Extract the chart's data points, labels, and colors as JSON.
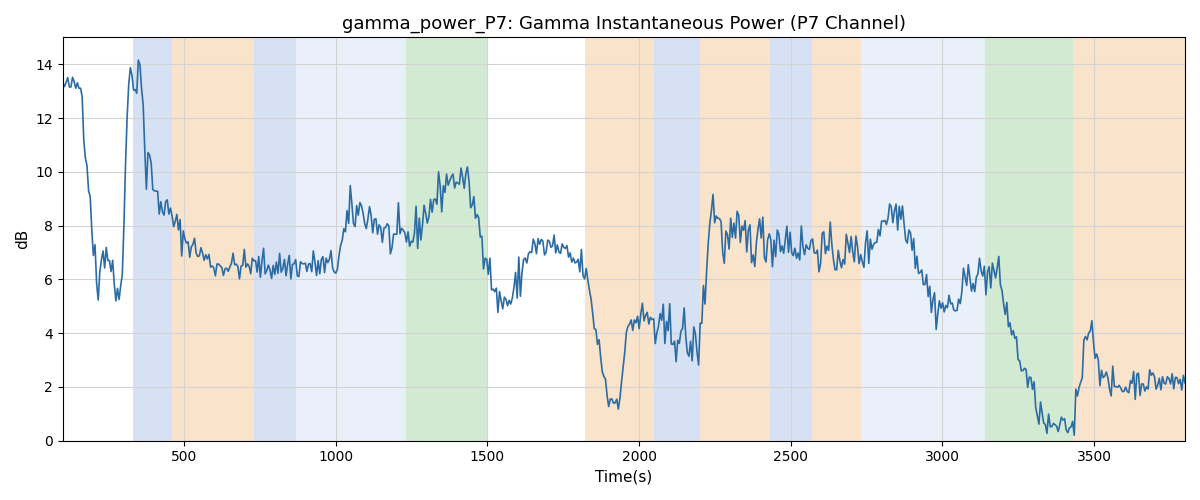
{
  "title": "gamma_power_P7: Gamma Instantaneous Power (P7 Channel)",
  "xlabel": "Time(s)",
  "ylabel": "dB",
  "xlim": [
    100,
    3800
  ],
  "ylim": [
    0,
    15
  ],
  "yticks": [
    0,
    2,
    4,
    6,
    8,
    10,
    12,
    14
  ],
  "xticks": [
    500,
    1000,
    1500,
    2000,
    2500,
    3000,
    3500
  ],
  "line_color": "#2c6ca4",
  "bg_regions": [
    {
      "xmin": 330,
      "xmax": 460,
      "color": "#aec6e8",
      "alpha": 0.5
    },
    {
      "xmin": 460,
      "xmax": 730,
      "color": "#f5c897",
      "alpha": 0.5
    },
    {
      "xmin": 730,
      "xmax": 870,
      "color": "#aec6e8",
      "alpha": 0.5
    },
    {
      "xmin": 870,
      "xmax": 1080,
      "color": "#aec6e8",
      "alpha": 0.25
    },
    {
      "xmin": 1080,
      "xmax": 1230,
      "color": "#aec6e8",
      "alpha": 0.25
    },
    {
      "xmin": 1230,
      "xmax": 1500,
      "color": "#90c990",
      "alpha": 0.4
    },
    {
      "xmin": 1820,
      "xmax": 2050,
      "color": "#f5c897",
      "alpha": 0.5
    },
    {
      "xmin": 2050,
      "xmax": 2200,
      "color": "#aec6e8",
      "alpha": 0.5
    },
    {
      "xmin": 2200,
      "xmax": 2430,
      "color": "#f5c897",
      "alpha": 0.5
    },
    {
      "xmin": 2430,
      "xmax": 2570,
      "color": "#aec6e8",
      "alpha": 0.5
    },
    {
      "xmin": 2570,
      "xmax": 2730,
      "color": "#f5c897",
      "alpha": 0.5
    },
    {
      "xmin": 2730,
      "xmax": 2870,
      "color": "#aec6e8",
      "alpha": 0.25
    },
    {
      "xmin": 2870,
      "xmax": 3000,
      "color": "#aec6e8",
      "alpha": 0.25
    },
    {
      "xmin": 3000,
      "xmax": 3140,
      "color": "#aec6e8",
      "alpha": 0.25
    },
    {
      "xmin": 3140,
      "xmax": 3430,
      "color": "#90c990",
      "alpha": 0.4
    },
    {
      "xmin": 3430,
      "xmax": 3800,
      "color": "#f5c897",
      "alpha": 0.5
    }
  ],
  "seed": 42
}
